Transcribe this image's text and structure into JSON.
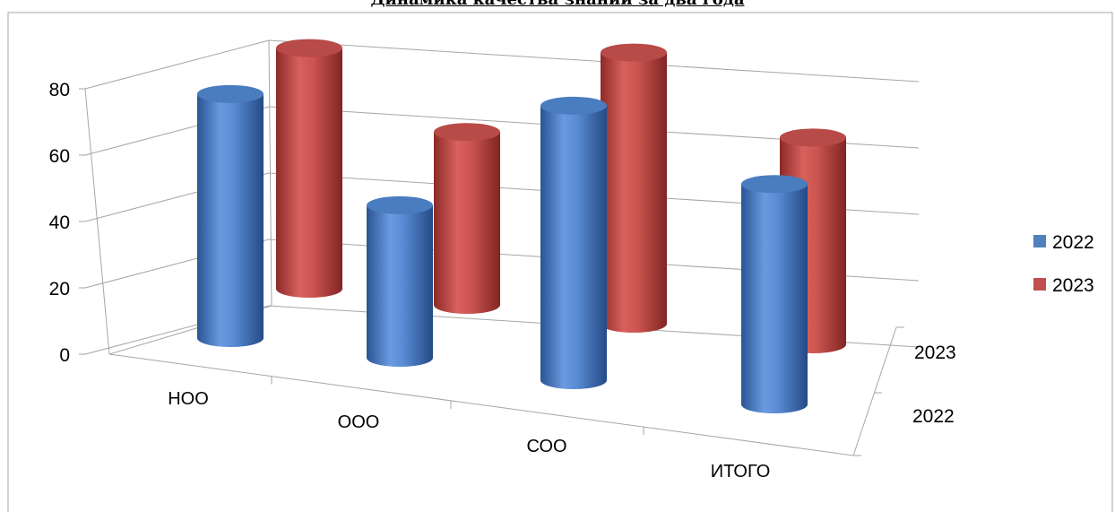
{
  "chart_data": {
    "type": "bar",
    "subtype": "3d-cylinder",
    "title": "Динамика качества знаний за два года",
    "categories": [
      "НОО",
      "ООО",
      "СОО",
      "ИТОГО"
    ],
    "depth_categories": [
      "2022",
      "2023"
    ],
    "series": [
      {
        "name": "2022",
        "color": "#4a7fc8",
        "values": [
          72,
          45,
          81,
          65
        ]
      },
      {
        "name": "2023",
        "color": "#c0504d",
        "values": [
          71,
          51,
          80,
          61
        ]
      }
    ],
    "ylim": [
      0,
      80
    ],
    "yticks": [
      "0",
      "20",
      "40",
      "60",
      "80"
    ],
    "grid": true,
    "legend_position": "right"
  }
}
